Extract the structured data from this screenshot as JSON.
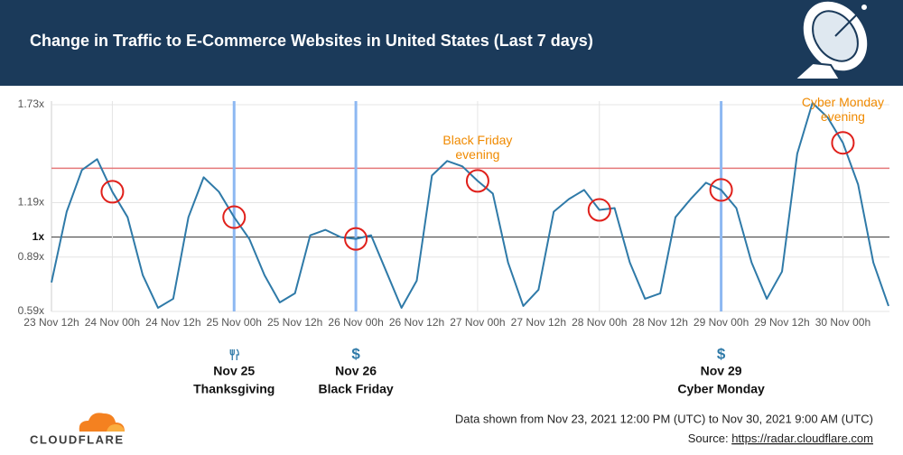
{
  "chart_data": {
    "type": "line",
    "title": "Change in Traffic to E-Commerce Websites in United States (Last 7 days)",
    "x": [
      "2021-11-23T12:00",
      "2021-11-23T15:00",
      "2021-11-23T18:00",
      "2021-11-23T21:00",
      "2021-11-24T00:00",
      "2021-11-24T03:00",
      "2021-11-24T06:00",
      "2021-11-24T09:00",
      "2021-11-24T12:00",
      "2021-11-24T15:00",
      "2021-11-24T18:00",
      "2021-11-24T21:00",
      "2021-11-25T00:00",
      "2021-11-25T03:00",
      "2021-11-25T06:00",
      "2021-11-25T09:00",
      "2021-11-25T12:00",
      "2021-11-25T15:00",
      "2021-11-25T18:00",
      "2021-11-25T21:00",
      "2021-11-26T00:00",
      "2021-11-26T03:00",
      "2021-11-26T06:00",
      "2021-11-26T09:00",
      "2021-11-26T12:00",
      "2021-11-26T15:00",
      "2021-11-26T18:00",
      "2021-11-26T21:00",
      "2021-11-27T00:00",
      "2021-11-27T03:00",
      "2021-11-27T06:00",
      "2021-11-27T09:00",
      "2021-11-27T12:00",
      "2021-11-27T15:00",
      "2021-11-27T18:00",
      "2021-11-27T21:00",
      "2021-11-28T00:00",
      "2021-11-28T03:00",
      "2021-11-28T06:00",
      "2021-11-28T09:00",
      "2021-11-28T12:00",
      "2021-11-28T15:00",
      "2021-11-28T18:00",
      "2021-11-28T21:00",
      "2021-11-29T00:00",
      "2021-11-29T03:00",
      "2021-11-29T06:00",
      "2021-11-29T09:00",
      "2021-11-29T12:00",
      "2021-11-29T15:00",
      "2021-11-29T18:00",
      "2021-11-29T21:00",
      "2021-11-30T00:00",
      "2021-11-30T03:00",
      "2021-11-30T06:00",
      "2021-11-30T09:00"
    ],
    "values": [
      0.75,
      1.14,
      1.37,
      1.43,
      1.25,
      1.11,
      0.79,
      0.61,
      0.66,
      1.11,
      1.33,
      1.25,
      1.11,
      0.99,
      0.79,
      0.64,
      0.69,
      1.01,
      1.04,
      1.0,
      0.99,
      1.01,
      0.81,
      0.61,
      0.76,
      1.34,
      1.42,
      1.39,
      1.31,
      1.24,
      0.86,
      0.62,
      0.71,
      1.14,
      1.21,
      1.26,
      1.15,
      1.16,
      0.86,
      0.66,
      0.69,
      1.11,
      1.21,
      1.3,
      1.26,
      1.16,
      0.86,
      0.66,
      0.81,
      1.46,
      1.74,
      1.66,
      1.52,
      1.29,
      0.86,
      0.62
    ],
    "color": "#2f7aa8",
    "xlim": [
      "2021-11-23T12:00",
      "2021-11-30T09:00"
    ],
    "xticks": [
      {
        "value": "2021-11-23T12:00",
        "label": "23 Nov 12h"
      },
      {
        "value": "2021-11-24T00:00",
        "label": "24 Nov 00h"
      },
      {
        "value": "2021-11-24T12:00",
        "label": "24 Nov 12h"
      },
      {
        "value": "2021-11-25T00:00",
        "label": "25 Nov 00h"
      },
      {
        "value": "2021-11-25T12:00",
        "label": "25 Nov 12h"
      },
      {
        "value": "2021-11-26T00:00",
        "label": "26 Nov 00h"
      },
      {
        "value": "2021-11-26T12:00",
        "label": "26 Nov 12h"
      },
      {
        "value": "2021-11-27T00:00",
        "label": "27 Nov 00h"
      },
      {
        "value": "2021-11-27T12:00",
        "label": "27 Nov 12h"
      },
      {
        "value": "2021-11-28T00:00",
        "label": "28 Nov 00h"
      },
      {
        "value": "2021-11-28T12:00",
        "label": "28 Nov 12h"
      },
      {
        "value": "2021-11-29T00:00",
        "label": "29 Nov 00h"
      },
      {
        "value": "2021-11-29T12:00",
        "label": "29 Nov 12h"
      },
      {
        "value": "2021-11-30T00:00",
        "label": "30 Nov 00h"
      }
    ],
    "ylim": [
      0.59,
      1.75
    ],
    "yticks": [
      {
        "value": 0.59,
        "label": "0.59x"
      },
      {
        "value": 0.89,
        "label": "0.89x"
      },
      {
        "value": 1,
        "label": "1x"
      },
      {
        "value": 1.19,
        "label": "1.19x"
      },
      {
        "value": 1.73,
        "label": "1.73x"
      }
    ],
    "grid": true,
    "baseline": 1,
    "reference_line": {
      "value": 1.38,
      "color": "#e5787a"
    },
    "highlights": [
      "2021-11-24T00:00",
      "2021-11-25T00:00",
      "2021-11-26T00:00",
      "2021-11-27T00:00",
      "2021-11-28T00:00",
      "2021-11-29T00:00",
      "2021-11-30T00:00"
    ],
    "highlight_color": "#e0201b",
    "annotations": [
      {
        "x": "2021-11-27T00:00",
        "lines": [
          "Black Friday",
          "evening"
        ],
        "color": "#f08a00"
      },
      {
        "x": "2021-11-30T00:00",
        "lines": [
          "Cyber Monday",
          "evening"
        ],
        "color": "#f08a00"
      }
    ],
    "events": [
      {
        "x": "2021-11-25T00:00",
        "date": "Nov 25",
        "label": "Thanksgiving"
      },
      {
        "x": "2021-11-26T00:00",
        "icon": "$",
        "date": "Nov 26",
        "label": "Black Friday"
      },
      {
        "x": "2021-11-29T00:00",
        "icon": "$",
        "date": "Nov 29",
        "label": "Cyber Monday"
      }
    ],
    "event_color": "#8db8f2"
  },
  "footer": {
    "logo": "CLOUDFLARE",
    "note": "Data shown from Nov 23, 2021 12:00 PM (UTC) to Nov 30, 2021 9:00 AM (UTC)",
    "source_label": "Source:",
    "source_url": "https://radar.cloudflare.com"
  }
}
